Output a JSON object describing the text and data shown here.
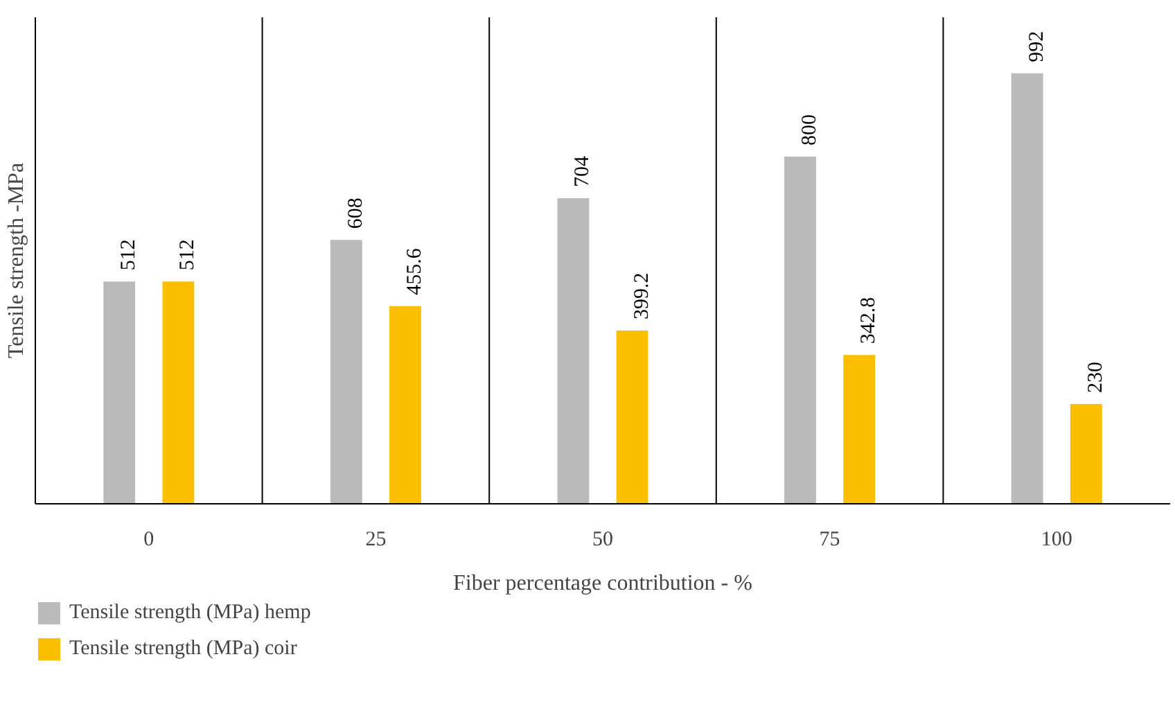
{
  "chart_data": {
    "type": "bar",
    "xlabel": "Fiber percentage contribution - %",
    "ylabel": "Tensile strength -MPa",
    "categories": [
      "0",
      "25",
      "50",
      "75",
      "100"
    ],
    "series": [
      {
        "name": "Tensile strength (MPa) hemp",
        "color": "#bababa",
        "values": [
          512,
          608,
          704,
          800,
          992
        ]
      },
      {
        "name": "Tensile strength (MPa) coir",
        "color": "#fcbf00",
        "values": [
          512,
          455.6,
          399.2,
          342.8,
          230
        ]
      }
    ],
    "data_labels": true,
    "legend": "bottom"
  }
}
